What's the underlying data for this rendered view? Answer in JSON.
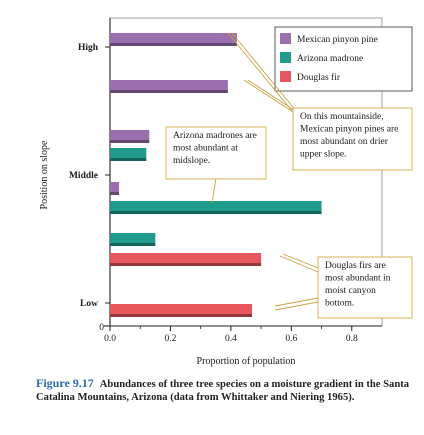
{
  "chart_data": {
    "type": "bar",
    "orientation": "horizontal",
    "xlabel": "Proportion of population",
    "ylabel": "Position on slope",
    "xlim": [
      0,
      0.9
    ],
    "x_ticks": [
      "0.0",
      "0.2",
      "0.4",
      "0.6",
      "0.8"
    ],
    "y_axis_zero_label": "0",
    "position_labels": [
      "High",
      "Middle",
      "Low"
    ],
    "legend_placement": "top-right",
    "series": [
      {
        "name": "Mexican pinyon pine",
        "color": "#9b6fae"
      },
      {
        "name": "Arizona madrone",
        "color": "#1f9a8c"
      },
      {
        "name": "Douglas fir",
        "color": "#e6585e"
      }
    ],
    "bars": [
      {
        "series": "Mexican pinyon pine",
        "value": 0.42
      },
      {
        "series": "Mexican pinyon pine",
        "value": 0.39
      },
      {
        "series": "Mexican pinyon pine",
        "value": 0.13
      },
      {
        "series": "Arizona madrone",
        "value": 0.12
      },
      {
        "series": "Mexican pinyon pine",
        "value": 0.03
      },
      {
        "series": "Arizona madrone",
        "value": 0.7
      },
      {
        "series": "Arizona madrone",
        "value": 0.15
      },
      {
        "series": "Douglas fir",
        "value": 0.5
      },
      {
        "series": "Douglas fir",
        "value": 0.47
      }
    ],
    "annotations": [
      "On this mountainside, Mexican pinyon pines are most abundant on drier upper slope.",
      "Arizona madrones are most abundant at midslope.",
      "Douglas firs are most abundant in moist canyon bottom."
    ]
  },
  "caption": {
    "figure_label": "Figure 9.17",
    "text": "Abundances of three tree species on a moisture gradient in the Santa Catalina Mountains, Arizona (data from Whittaker and Niering 1965)."
  }
}
